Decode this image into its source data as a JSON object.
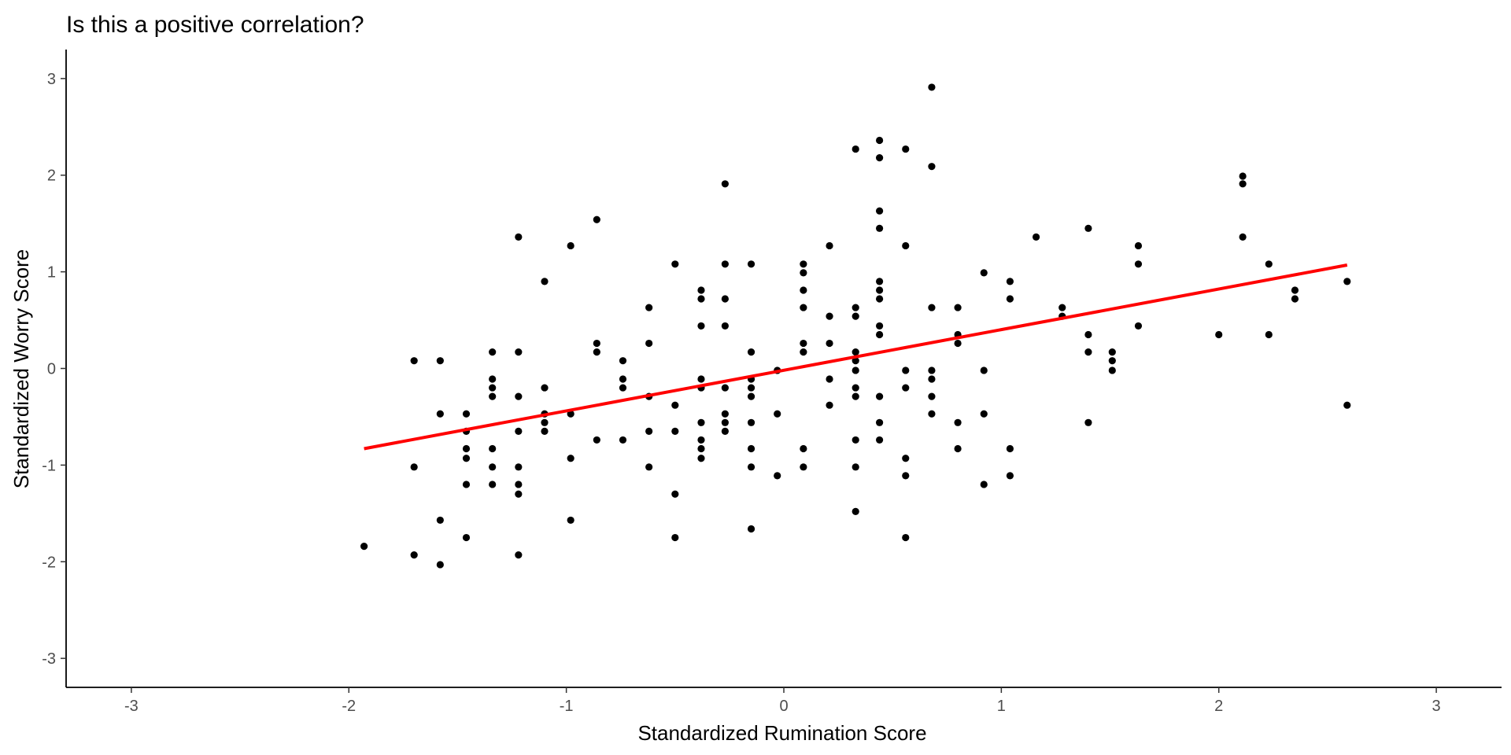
{
  "chart_data": {
    "type": "scatter",
    "title": "Is this a positive correlation?",
    "xlabel": "Standardized Rumination Score",
    "ylabel": "Standardized Worry Score",
    "xlim": [
      -3.3,
      3.3
    ],
    "ylim": [
      -3.3,
      3.3
    ],
    "x_ticks": [
      -3,
      -2,
      -1,
      0,
      1,
      2,
      3
    ],
    "y_ticks": [
      -3,
      -2,
      -1,
      0,
      1,
      2,
      3
    ],
    "x_tick_labels": [
      "-3",
      "-2",
      "-1",
      "0",
      "1",
      "2",
      "3"
    ],
    "y_tick_labels": [
      "-3",
      "-2",
      "-1",
      "0",
      "1",
      "2",
      "3"
    ],
    "grid": false,
    "legend": "none",
    "point_color": "#000000",
    "fit_line_color": "#ff0000",
    "fit_line": {
      "x": [
        -1.93,
        2.59
      ],
      "y": [
        -0.83,
        1.07
      ]
    },
    "points": [
      [
        -1.93,
        -1.84
      ],
      [
        -1.7,
        0.08
      ],
      [
        -1.7,
        -1.02
      ],
      [
        -1.7,
        -1.93
      ],
      [
        -1.58,
        0.08
      ],
      [
        -1.58,
        -0.47
      ],
      [
        -1.58,
        -1.57
      ],
      [
        -1.58,
        -2.03
      ],
      [
        -1.46,
        -0.47
      ],
      [
        -1.46,
        -0.65
      ],
      [
        -1.46,
        -0.83
      ],
      [
        -1.46,
        -0.93
      ],
      [
        -1.46,
        -1.2
      ],
      [
        -1.46,
        -1.75
      ],
      [
        -1.34,
        0.17
      ],
      [
        -1.34,
        -0.11
      ],
      [
        -1.34,
        -0.2
      ],
      [
        -1.34,
        -0.29
      ],
      [
        -1.34,
        -0.83
      ],
      [
        -1.34,
        -1.02
      ],
      [
        -1.34,
        -1.2
      ],
      [
        -1.22,
        1.36
      ],
      [
        -1.22,
        0.17
      ],
      [
        -1.22,
        -0.29
      ],
      [
        -1.22,
        -0.65
      ],
      [
        -1.22,
        -1.02
      ],
      [
        -1.22,
        -1.2
      ],
      [
        -1.22,
        -1.3
      ],
      [
        -1.22,
        -1.93
      ],
      [
        -1.1,
        0.9
      ],
      [
        -1.1,
        -0.2
      ],
      [
        -1.1,
        -0.47
      ],
      [
        -1.1,
        -0.56
      ],
      [
        -1.1,
        -0.65
      ],
      [
        -0.98,
        1.27
      ],
      [
        -0.98,
        -0.47
      ],
      [
        -0.98,
        -0.93
      ],
      [
        -0.98,
        -1.57
      ],
      [
        -0.86,
        1.54
      ],
      [
        -0.86,
        0.26
      ],
      [
        -0.86,
        0.17
      ],
      [
        -0.86,
        -0.74
      ],
      [
        -0.74,
        0.08
      ],
      [
        -0.74,
        -0.11
      ],
      [
        -0.74,
        -0.2
      ],
      [
        -0.74,
        -0.74
      ],
      [
        -0.62,
        0.63
      ],
      [
        -0.62,
        0.26
      ],
      [
        -0.62,
        -0.29
      ],
      [
        -0.62,
        -0.65
      ],
      [
        -0.62,
        -1.02
      ],
      [
        -0.5,
        1.08
      ],
      [
        -0.5,
        -0.38
      ],
      [
        -0.5,
        -0.65
      ],
      [
        -0.5,
        -1.3
      ],
      [
        -0.5,
        -1.75
      ],
      [
        -0.38,
        0.81
      ],
      [
        -0.38,
        0.72
      ],
      [
        -0.38,
        0.44
      ],
      [
        -0.38,
        -0.11
      ],
      [
        -0.38,
        -0.2
      ],
      [
        -0.38,
        -0.56
      ],
      [
        -0.38,
        -0.74
      ],
      [
        -0.38,
        -0.83
      ],
      [
        -0.38,
        -0.93
      ],
      [
        -0.27,
        1.91
      ],
      [
        -0.27,
        1.08
      ],
      [
        -0.27,
        0.72
      ],
      [
        -0.27,
        0.44
      ],
      [
        -0.27,
        -0.2
      ],
      [
        -0.27,
        -0.47
      ],
      [
        -0.27,
        -0.56
      ],
      [
        -0.27,
        -0.65
      ],
      [
        -0.15,
        1.08
      ],
      [
        -0.15,
        0.17
      ],
      [
        -0.15,
        -0.11
      ],
      [
        -0.15,
        -0.2
      ],
      [
        -0.15,
        -0.29
      ],
      [
        -0.15,
        -0.56
      ],
      [
        -0.15,
        -0.83
      ],
      [
        -0.15,
        -1.02
      ],
      [
        -0.15,
        -1.66
      ],
      [
        -0.03,
        -0.02
      ],
      [
        -0.03,
        -0.47
      ],
      [
        -0.03,
        -1.11
      ],
      [
        0.09,
        1.08
      ],
      [
        0.09,
        0.99
      ],
      [
        0.09,
        0.81
      ],
      [
        0.09,
        0.63
      ],
      [
        0.09,
        0.26
      ],
      [
        0.09,
        0.17
      ],
      [
        0.09,
        -0.83
      ],
      [
        0.09,
        -1.02
      ],
      [
        0.21,
        1.27
      ],
      [
        0.21,
        0.54
      ],
      [
        0.21,
        0.26
      ],
      [
        0.21,
        -0.11
      ],
      [
        0.21,
        -0.38
      ],
      [
        0.33,
        2.27
      ],
      [
        0.33,
        0.63
      ],
      [
        0.33,
        0.54
      ],
      [
        0.33,
        0.17
      ],
      [
        0.33,
        0.08
      ],
      [
        0.33,
        -0.02
      ],
      [
        0.33,
        -0.2
      ],
      [
        0.33,
        -0.29
      ],
      [
        0.33,
        -0.74
      ],
      [
        0.33,
        -1.02
      ],
      [
        0.33,
        -1.48
      ],
      [
        0.44,
        2.36
      ],
      [
        0.44,
        2.18
      ],
      [
        0.44,
        1.63
      ],
      [
        0.44,
        1.45
      ],
      [
        0.44,
        0.9
      ],
      [
        0.44,
        0.81
      ],
      [
        0.44,
        0.72
      ],
      [
        0.44,
        0.44
      ],
      [
        0.44,
        0.35
      ],
      [
        0.44,
        -0.29
      ],
      [
        0.44,
        -0.56
      ],
      [
        0.44,
        -0.74
      ],
      [
        0.56,
        2.27
      ],
      [
        0.56,
        1.27
      ],
      [
        0.56,
        -0.02
      ],
      [
        0.56,
        -0.2
      ],
      [
        0.56,
        -0.93
      ],
      [
        0.56,
        -1.11
      ],
      [
        0.56,
        -1.75
      ],
      [
        0.68,
        2.91
      ],
      [
        0.68,
        2.09
      ],
      [
        0.68,
        0.63
      ],
      [
        0.68,
        -0.02
      ],
      [
        0.68,
        -0.11
      ],
      [
        0.68,
        -0.29
      ],
      [
        0.68,
        -0.47
      ],
      [
        0.8,
        0.63
      ],
      [
        0.8,
        0.35
      ],
      [
        0.8,
        0.26
      ],
      [
        0.8,
        -0.56
      ],
      [
        0.8,
        -0.83
      ],
      [
        0.92,
        0.99
      ],
      [
        0.92,
        -0.02
      ],
      [
        0.92,
        -0.47
      ],
      [
        0.92,
        -1.2
      ],
      [
        1.04,
        0.9
      ],
      [
        1.04,
        0.72
      ],
      [
        1.04,
        -0.83
      ],
      [
        1.04,
        -1.11
      ],
      [
        1.16,
        1.36
      ],
      [
        1.28,
        0.63
      ],
      [
        1.28,
        0.54
      ],
      [
        1.4,
        1.45
      ],
      [
        1.4,
        0.35
      ],
      [
        1.4,
        0.17
      ],
      [
        1.4,
        -0.56
      ],
      [
        1.51,
        0.17
      ],
      [
        1.51,
        0.08
      ],
      [
        1.51,
        -0.02
      ],
      [
        1.63,
        1.27
      ],
      [
        1.63,
        1.08
      ],
      [
        1.63,
        0.44
      ],
      [
        2.0,
        0.35
      ],
      [
        2.11,
        1.99
      ],
      [
        2.11,
        1.91
      ],
      [
        2.11,
        1.36
      ],
      [
        2.23,
        1.08
      ],
      [
        2.23,
        0.35
      ],
      [
        2.35,
        0.81
      ],
      [
        2.35,
        0.72
      ],
      [
        2.59,
        0.9
      ],
      [
        2.59,
        -0.38
      ]
    ]
  }
}
